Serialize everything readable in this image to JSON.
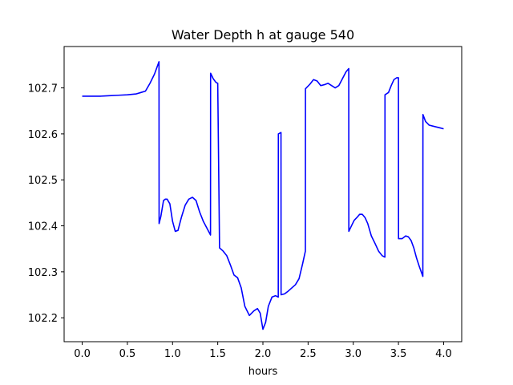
{
  "chart_data": {
    "type": "line",
    "title": "Water Depth h at gauge 540",
    "xlabel": "hours",
    "ylabel": "",
    "xlim": [
      -0.2,
      4.2
    ],
    "ylim": [
      102.148,
      102.79
    ],
    "xticks": [
      0.0,
      0.5,
      1.0,
      1.5,
      2.0,
      2.5,
      3.0,
      3.5,
      4.0
    ],
    "xtick_labels": [
      "0.0",
      "0.5",
      "1.0",
      "1.5",
      "2.0",
      "2.5",
      "3.0",
      "3.5",
      "4.0"
    ],
    "yticks": [
      102.2,
      102.3,
      102.4,
      102.5,
      102.6,
      102.7
    ],
    "ytick_labels": [
      "102.2",
      "102.3",
      "102.4",
      "102.5",
      "102.6",
      "102.7"
    ],
    "grid": false,
    "legend": "none",
    "line_color": "#0000ff",
    "series": [
      {
        "x": [
          0.0,
          0.1,
          0.2,
          0.3,
          0.4,
          0.5,
          0.6,
          0.65,
          0.7,
          0.75,
          0.8,
          0.85,
          0.851,
          0.87,
          0.9,
          0.92,
          0.94,
          0.97,
          1.0,
          1.03,
          1.06,
          1.1,
          1.14,
          1.18,
          1.22,
          1.26,
          1.3,
          1.34,
          1.38,
          1.42,
          1.421,
          1.45,
          1.48,
          1.5,
          1.52,
          1.56,
          1.6,
          1.64,
          1.68,
          1.72,
          1.76,
          1.8,
          1.85,
          1.9,
          1.94,
          1.97,
          2.0,
          2.03,
          2.06,
          2.1,
          2.14,
          2.17,
          2.171,
          2.2,
          2.201,
          2.24,
          2.28,
          2.32,
          2.36,
          2.4,
          2.44,
          2.47,
          2.471,
          2.52,
          2.56,
          2.6,
          2.64,
          2.68,
          2.72,
          2.76,
          2.8,
          2.84,
          2.88,
          2.92,
          2.95,
          2.951,
          2.98,
          3.01,
          3.04,
          3.07,
          3.1,
          3.13,
          3.16,
          3.2,
          3.24,
          3.28,
          3.32,
          3.35,
          3.351,
          3.39,
          3.42,
          3.45,
          3.48,
          3.5,
          3.501,
          3.54,
          3.58,
          3.61,
          3.64,
          3.67,
          3.7,
          3.73,
          3.77,
          3.771,
          3.8,
          3.84,
          3.88,
          3.92,
          3.96,
          4.0
        ],
        "y": [
          102.682,
          102.682,
          102.682,
          102.683,
          102.684,
          102.685,
          102.687,
          102.69,
          102.693,
          102.71,
          102.73,
          102.757,
          102.405,
          102.42,
          102.455,
          102.458,
          102.458,
          102.448,
          102.41,
          102.388,
          102.39,
          102.42,
          102.445,
          102.458,
          102.462,
          102.455,
          102.43,
          102.41,
          102.395,
          102.38,
          102.732,
          102.72,
          102.712,
          102.71,
          102.352,
          102.345,
          102.335,
          102.315,
          102.293,
          102.287,
          102.265,
          102.225,
          102.205,
          102.215,
          102.22,
          102.21,
          102.175,
          102.19,
          102.225,
          102.245,
          102.248,
          102.245,
          102.6,
          102.603,
          102.25,
          102.252,
          102.258,
          102.265,
          102.272,
          102.285,
          102.318,
          102.345,
          102.698,
          102.708,
          102.718,
          102.715,
          102.705,
          102.707,
          102.71,
          102.705,
          102.7,
          102.705,
          102.72,
          102.735,
          102.742,
          102.388,
          102.4,
          102.412,
          102.418,
          102.425,
          102.425,
          102.418,
          102.405,
          102.378,
          102.362,
          102.345,
          102.335,
          102.332,
          102.685,
          102.69,
          102.705,
          102.718,
          102.722,
          102.722,
          102.372,
          102.372,
          102.378,
          102.376,
          102.368,
          102.352,
          102.33,
          102.312,
          102.29,
          102.642,
          102.627,
          102.619,
          102.617,
          102.615,
          102.613,
          102.611
        ]
      }
    ]
  }
}
